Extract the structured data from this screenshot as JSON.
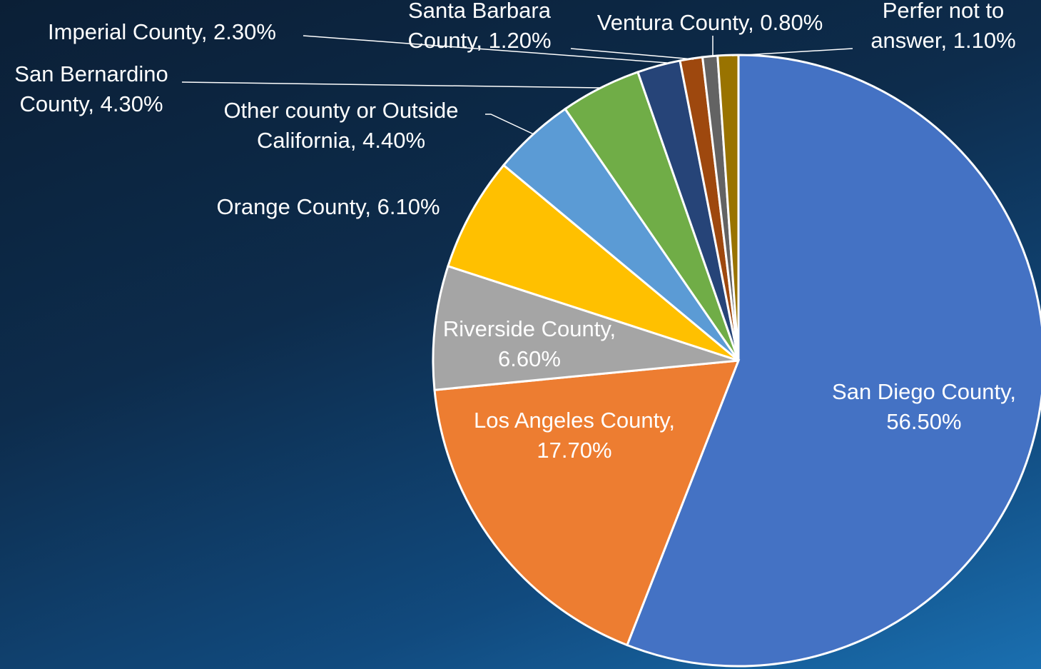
{
  "chart_data": {
    "type": "pie",
    "categories": [
      "San Diego County",
      "Los Angeles County",
      "Riverside County",
      "Orange County",
      "Other county or Outside California",
      "San Bernardino County",
      "Imperial County",
      "Santa Barbara County",
      "Ventura County",
      "Perfer not to answer"
    ],
    "values": [
      56.5,
      17.7,
      6.6,
      6.1,
      4.4,
      4.3,
      2.3,
      1.2,
      0.8,
      1.1
    ],
    "value_labels": [
      "San Diego County, 56.50%",
      "Los Angeles County, 17.70%",
      "Riverside County, 6.60%",
      "Orange County, 6.10%",
      "Other county or Outside California, 4.40%",
      "San Bernardino County, 4.30%",
      "Imperial County, 2.30%",
      "Santa Barbara County, 1.20%",
      "Ventura County, 0.80%",
      "Perfer not to answer, 1.10%"
    ],
    "colors": [
      "#4472c4",
      "#ed7d31",
      "#a5a5a5",
      "#ffc000",
      "#5b9bd5",
      "#70ad47",
      "#264478",
      "#9e480e",
      "#636363",
      "#997300"
    ]
  }
}
